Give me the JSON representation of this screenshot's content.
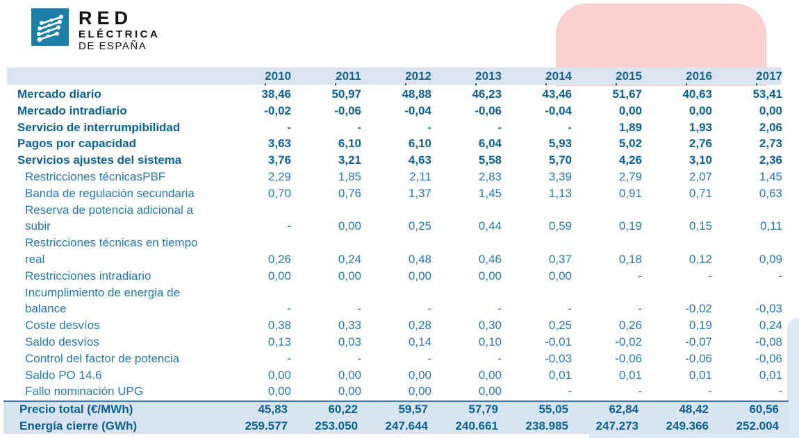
{
  "logo": {
    "line1": "RED",
    "line2": "ELÉCTRICA",
    "line3": "DE ESPAÑA"
  },
  "colors": {
    "logo_square": "#1b7fa6",
    "header_band": "#dbe5f1",
    "footer_band": "#d8e4f1",
    "footer_top_line": "#2e74b5",
    "pink_shape": "#fbd1cd",
    "blue_shape": "#dce8f6",
    "text_regular": "#2878a8",
    "text_bold": "#0d608e"
  },
  "table": {
    "years": [
      "2010",
      "2011",
      "2012",
      "2013",
      "2014",
      "2015",
      "2016",
      "2017"
    ],
    "rows": [
      {
        "label": "Mercado diario",
        "bold": true,
        "indent": false,
        "values": [
          "38,46",
          "50,97",
          "48,88",
          "46,23",
          "43,46",
          "51,67",
          "40,63",
          "53,41"
        ]
      },
      {
        "label": "Mercado intradiario",
        "bold": true,
        "indent": false,
        "values": [
          "-0,02",
          "-0,06",
          "-0,04",
          "-0,06",
          "-0,04",
          "0,00",
          "0,00",
          "0,00"
        ]
      },
      {
        "label": "Servicio de interrumpibilidad",
        "bold": true,
        "indent": false,
        "values": [
          "-",
          "-",
          "-",
          "-",
          "-",
          "1,89",
          "1,93",
          "2,06"
        ]
      },
      {
        "label": "Pagos por capacidad",
        "bold": true,
        "indent": false,
        "values": [
          "3,63",
          "6,10",
          "6,10",
          "6,04",
          "5,93",
          "5,02",
          "2,76",
          "2,73"
        ]
      },
      {
        "label": "Servicios ajustes del sistema",
        "bold": true,
        "indent": false,
        "values": [
          "3,76",
          "3,21",
          "4,63",
          "5,58",
          "5,70",
          "4,26",
          "3,10",
          "2,36"
        ]
      },
      {
        "label": "Restricciones técnicasPBF",
        "bold": false,
        "indent": true,
        "values": [
          "2,29",
          "1,85",
          "2,11",
          "2,83",
          "3,39",
          "2,79",
          "2,07",
          "1,45"
        ]
      },
      {
        "label": "Banda de regulación secundaria",
        "bold": false,
        "indent": true,
        "values": [
          "0,70",
          "0,76",
          "1,37",
          "1,45",
          "1,13",
          "0,91",
          "0,71",
          "0,63"
        ]
      },
      {
        "label": "Reserva de potencia adicional a\nsubir",
        "bold": false,
        "indent": true,
        "values": [
          "-",
          "0,00",
          "0,25",
          "0,44",
          "0,59",
          "0,19",
          "0,15",
          "0,11"
        ]
      },
      {
        "label": "Restricciones técnicas en tiempo\nreal",
        "bold": false,
        "indent": true,
        "values": [
          "0,26",
          "0,24",
          "0,48",
          "0,46",
          "0,37",
          "0,18",
          "0,12",
          "0,09"
        ]
      },
      {
        "label": "Restricciones intradiario",
        "bold": false,
        "indent": true,
        "values": [
          "0,00",
          "0,00",
          "0,00",
          "0,00",
          "0,00",
          "-",
          "-",
          "-"
        ]
      },
      {
        "label": "Incumplimiento de energia de\nbalance",
        "bold": false,
        "indent": true,
        "values": [
          "-",
          "-",
          "-",
          "-",
          "-",
          "-",
          "-0,02",
          "-0,03"
        ]
      },
      {
        "label": "Coste desvíos",
        "bold": false,
        "indent": true,
        "values": [
          "0,38",
          "0,33",
          "0,28",
          "0,30",
          "0,25",
          "0,26",
          "0,19",
          "0,24"
        ]
      },
      {
        "label": "Saldo desvíos",
        "bold": false,
        "indent": true,
        "values": [
          "0,13",
          "0,03",
          "0,14",
          "0,10",
          "-0,01",
          "-0,02",
          "-0,07",
          "-0,08"
        ]
      },
      {
        "label": "Control del factor de potencia",
        "bold": false,
        "indent": true,
        "values": [
          "-",
          "-",
          "-",
          "-",
          "-0,03",
          "-0,06",
          "-0,06",
          "-0,06"
        ]
      },
      {
        "label": "Saldo PO 14.6",
        "bold": false,
        "indent": true,
        "values": [
          "0,00",
          "0,00",
          "0,00",
          "0,00",
          "0,01",
          "0,01",
          "0,01",
          "0,01"
        ]
      },
      {
        "label": "Fallo nominación UPG",
        "bold": false,
        "indent": true,
        "values": [
          "0,00",
          "0,00",
          "0,00",
          "0,00",
          "-",
          "-",
          "-",
          "-"
        ]
      }
    ],
    "footer_rows": [
      {
        "label": "Precio total (€/MWh)",
        "values": [
          "45,83",
          "60,22",
          "59,57",
          "57,79",
          "55,05",
          "62,84",
          "48,42",
          "60,56"
        ]
      },
      {
        "label": "Energía cierre (GWh)",
        "values": [
          "259.577",
          "253.050",
          "247.644",
          "240.661",
          "238.985",
          "247.273",
          "249.366",
          "252.004"
        ]
      }
    ]
  }
}
